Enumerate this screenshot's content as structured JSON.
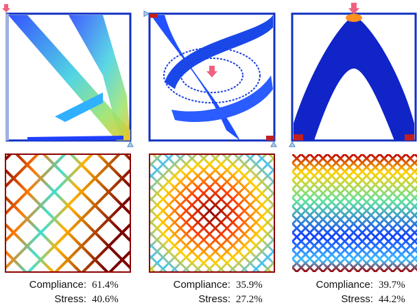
{
  "figure": {
    "compliance_label": "Compliance:",
    "stress_label": "Stress:",
    "panels": [
      {
        "compliance": "61.4%",
        "stress": "40.6%"
      },
      {
        "compliance": "35.9%",
        "stress": "27.2%"
      },
      {
        "compliance": "39.7%",
        "stress": "44.2%"
      }
    ]
  }
}
